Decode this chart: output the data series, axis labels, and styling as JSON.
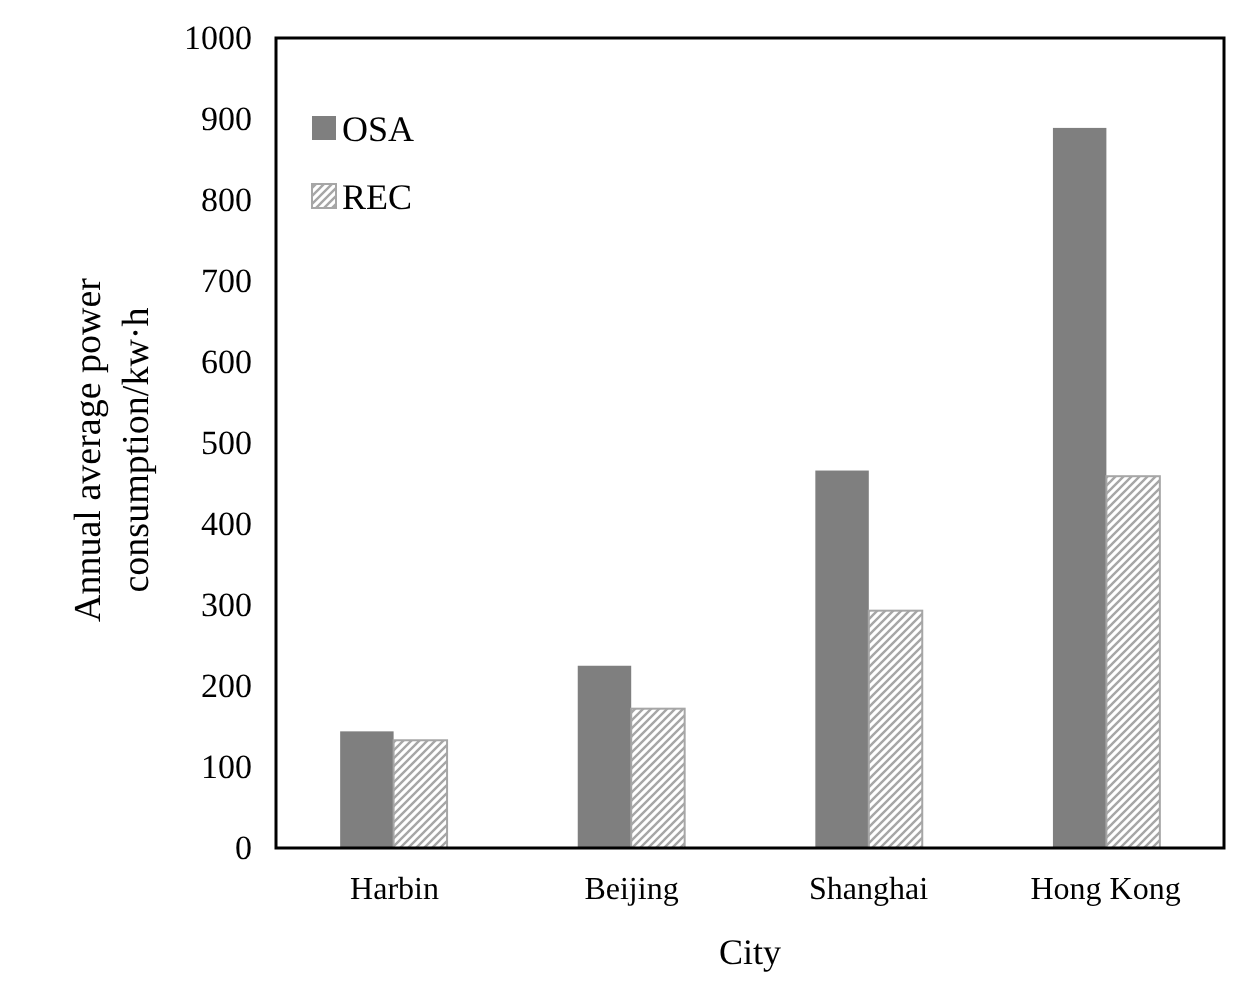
{
  "chart_data": {
    "type": "bar",
    "xlabel": "City",
    "ylabel": "Annual average power consumption/kw·h",
    "categories": [
      "Harbin",
      "Beijing",
      "Shanghai",
      "Hong Kong"
    ],
    "series": [
      {
        "name": "OSA",
        "color": "#7f7f7f",
        "values": [
          144,
          225,
          466,
          889
        ]
      },
      {
        "name": "REC",
        "color": "#a6a6a6",
        "values": [
          133,
          172,
          293,
          459
        ]
      }
    ],
    "ylim": [
      0,
      1000
    ],
    "yticks": [
      0,
      100,
      200,
      300,
      400,
      500,
      600,
      700,
      800,
      900,
      1000
    ],
    "grid": false,
    "legend": "top left"
  }
}
